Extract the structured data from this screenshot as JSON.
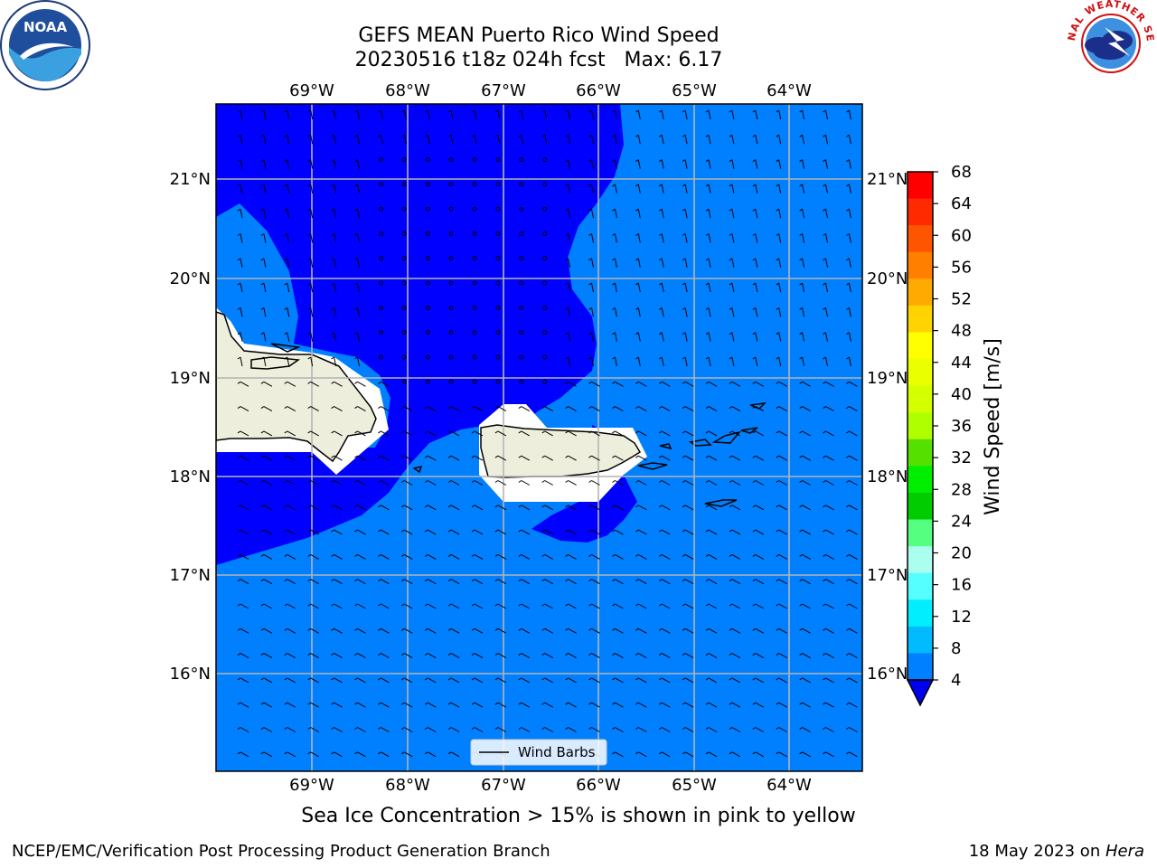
{
  "title": {
    "line1": "GEFS MEAN Puerto Rico Wind Speed",
    "line2": "20230516 t18z 024h fcst   Max: 6.17"
  },
  "logos": {
    "left": {
      "name": "noaa-logo",
      "text": "NOAA"
    },
    "right": {
      "name": "nws-logo",
      "text": "NATIONAL WEATHER SERVICE"
    }
  },
  "axes": {
    "lon_labels": [
      "69°W",
      "68°W",
      "67°W",
      "66°W",
      "65°W",
      "64°W"
    ],
    "lat_labels": [
      "21°N",
      "20°N",
      "19°N",
      "18°N",
      "17°N",
      "16°N"
    ]
  },
  "legend": {
    "label": "Wind Barbs"
  },
  "colorbar": {
    "label": "Wind Speed [m/s]",
    "ticks": [
      "68",
      "64",
      "60",
      "56",
      "52",
      "48",
      "44",
      "40",
      "36",
      "32",
      "28",
      "24",
      "20",
      "16",
      "12",
      "8",
      "4"
    ],
    "colors": [
      "#ff0000",
      "#ff2a00",
      "#ff5500",
      "#ff8000",
      "#ffaa00",
      "#ffd400",
      "#ffff00",
      "#eaff00",
      "#d4ff00",
      "#b0ff00",
      "#55e000",
      "#00ee00",
      "#00cc00",
      "#55ff80",
      "#aaffee",
      "#55ffff",
      "#00eeff",
      "#00bbff",
      "#0080ff"
    ],
    "under_color": "#0000ee"
  },
  "map_colors": {
    "low": "#0000ff",
    "mid": "#0080ff",
    "land": "#eeeedc",
    "masked": "#ffffff",
    "grid": "#b4b4b4"
  },
  "caption": "Sea Ice Concentration > 15% is shown in pink to yellow",
  "footer": {
    "left": "NCEP/EMC/Verification Post Processing Product Generation Branch",
    "right_prefix": "18 May 2023 on ",
    "right_host": "Hera"
  }
}
